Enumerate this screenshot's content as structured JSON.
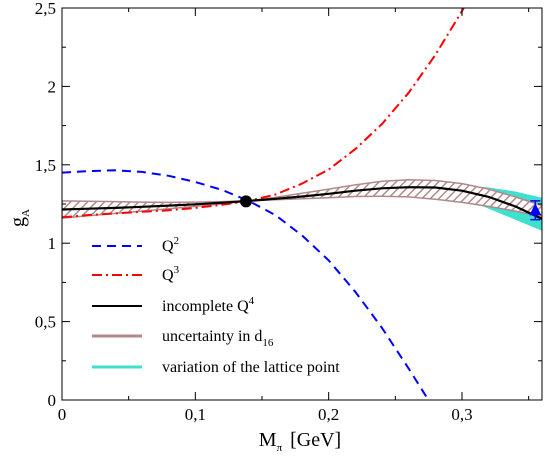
{
  "chart_data": {
    "type": "line",
    "xlabel_main": "M",
    "xlabel_sub": "π",
    "xlabel_unit": "[GeV]",
    "ylabel_main": "g",
    "ylabel_sub": "A",
    "xlim": [
      0,
      0.36
    ],
    "ylim": [
      0,
      2.5
    ],
    "x_ticks": [
      0,
      0.1,
      0.2,
      0.3
    ],
    "x_tick_labels": [
      "0",
      "0,1",
      "0,2",
      "0,3"
    ],
    "y_ticks": [
      0,
      0.5,
      1,
      1.5,
      2,
      2.5
    ],
    "y_tick_labels": [
      "0",
      "0,5",
      "1",
      "1,5",
      "2",
      "2,5"
    ],
    "grid": false,
    "legend_position": "bottom-left",
    "legend": [
      {
        "key": "q2",
        "label": "Q",
        "sup": "2",
        "color": "#0000ff",
        "style": "dashed"
      },
      {
        "key": "q3",
        "label": "Q",
        "sup": "3",
        "color": "#ff0000",
        "style": "dash-dot"
      },
      {
        "key": "q4",
        "label": "incomplete Q",
        "sup": "4",
        "color": "#000000",
        "style": "solid"
      },
      {
        "key": "d16",
        "label": "uncertainty in d",
        "sub": "16",
        "color": "#b08a8a",
        "style": "band-hatched"
      },
      {
        "key": "lattice",
        "label": "variation of the lattice point",
        "color": "#40e0d0",
        "style": "band-solid"
      }
    ],
    "series": {
      "q2": {
        "x": [
          0,
          0.02,
          0.04,
          0.06,
          0.08,
          0.1,
          0.12,
          0.14,
          0.16,
          0.18,
          0.2,
          0.22,
          0.24,
          0.26,
          0.28
        ],
        "y": [
          1.45,
          1.46,
          1.465,
          1.455,
          1.43,
          1.39,
          1.34,
          1.27,
          1.18,
          1.05,
          0.89,
          0.69,
          0.46,
          0.2,
          -0.07
        ]
      },
      "q3": {
        "x": [
          0,
          0.02,
          0.04,
          0.06,
          0.08,
          0.1,
          0.12,
          0.14,
          0.16,
          0.18,
          0.2,
          0.22,
          0.24,
          0.26,
          0.28,
          0.3,
          0.315
        ],
        "y": [
          1.165,
          1.18,
          1.19,
          1.2,
          1.21,
          1.225,
          1.245,
          1.27,
          1.31,
          1.38,
          1.47,
          1.6,
          1.76,
          1.96,
          2.2,
          2.48,
          2.72
        ]
      },
      "q4": {
        "x": [
          0,
          0.02,
          0.04,
          0.06,
          0.08,
          0.1,
          0.12,
          0.14,
          0.16,
          0.18,
          0.2,
          0.22,
          0.24,
          0.26,
          0.28,
          0.3,
          0.32,
          0.34,
          0.36
        ],
        "y": [
          1.215,
          1.22,
          1.225,
          1.232,
          1.24,
          1.248,
          1.258,
          1.27,
          1.283,
          1.298,
          1.315,
          1.335,
          1.35,
          1.357,
          1.355,
          1.335,
          1.295,
          1.235,
          1.155
        ]
      },
      "d16_band": {
        "x": [
          0,
          0.02,
          0.04,
          0.06,
          0.08,
          0.1,
          0.12,
          0.14,
          0.16,
          0.18,
          0.2,
          0.22,
          0.24,
          0.26,
          0.28,
          0.3,
          0.32,
          0.34,
          0.36
        ],
        "lower": [
          1.16,
          1.175,
          1.19,
          1.205,
          1.22,
          1.235,
          1.25,
          1.27,
          1.277,
          1.283,
          1.29,
          1.298,
          1.3,
          1.295,
          1.28,
          1.26,
          1.235,
          1.205,
          1.17
        ],
        "upper": [
          1.27,
          1.268,
          1.265,
          1.262,
          1.26,
          1.262,
          1.265,
          1.27,
          1.292,
          1.318,
          1.345,
          1.372,
          1.395,
          1.405,
          1.4,
          1.38,
          1.345,
          1.295,
          1.24
        ]
      },
      "lattice_band": {
        "x": [
          0.26,
          0.28,
          0.3,
          0.32,
          0.34,
          0.36
        ],
        "lower": [
          1.357,
          1.34,
          1.29,
          1.22,
          1.15,
          1.08
        ],
        "upper": [
          1.357,
          1.37,
          1.37,
          1.355,
          1.33,
          1.29
        ]
      },
      "chiral_point": {
        "x": 0.138,
        "y": 1.267
      },
      "lattice_point": {
        "x": 0.355,
        "y": 1.21,
        "err_low": 1.15,
        "err_high": 1.27
      }
    }
  }
}
